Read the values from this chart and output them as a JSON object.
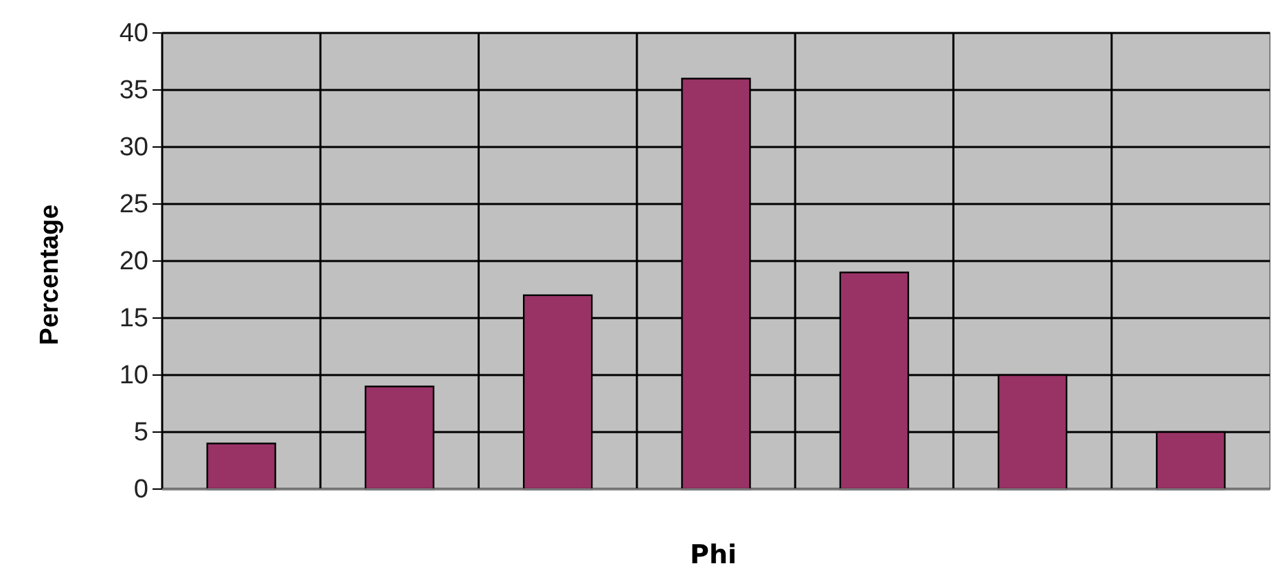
{
  "chart_data": {
    "type": "bar",
    "xlabel": "Phi",
    "ylabel": "Percentage",
    "categories": [
      null,
      null,
      null,
      null,
      null,
      null,
      null
    ],
    "values": [
      4,
      9,
      17,
      36,
      19,
      10,
      5
    ],
    "color": "#993366",
    "ylim": [
      0,
      40
    ],
    "yticks": [
      0,
      5,
      10,
      15,
      20,
      25,
      30,
      35,
      40
    ],
    "grid": true
  }
}
